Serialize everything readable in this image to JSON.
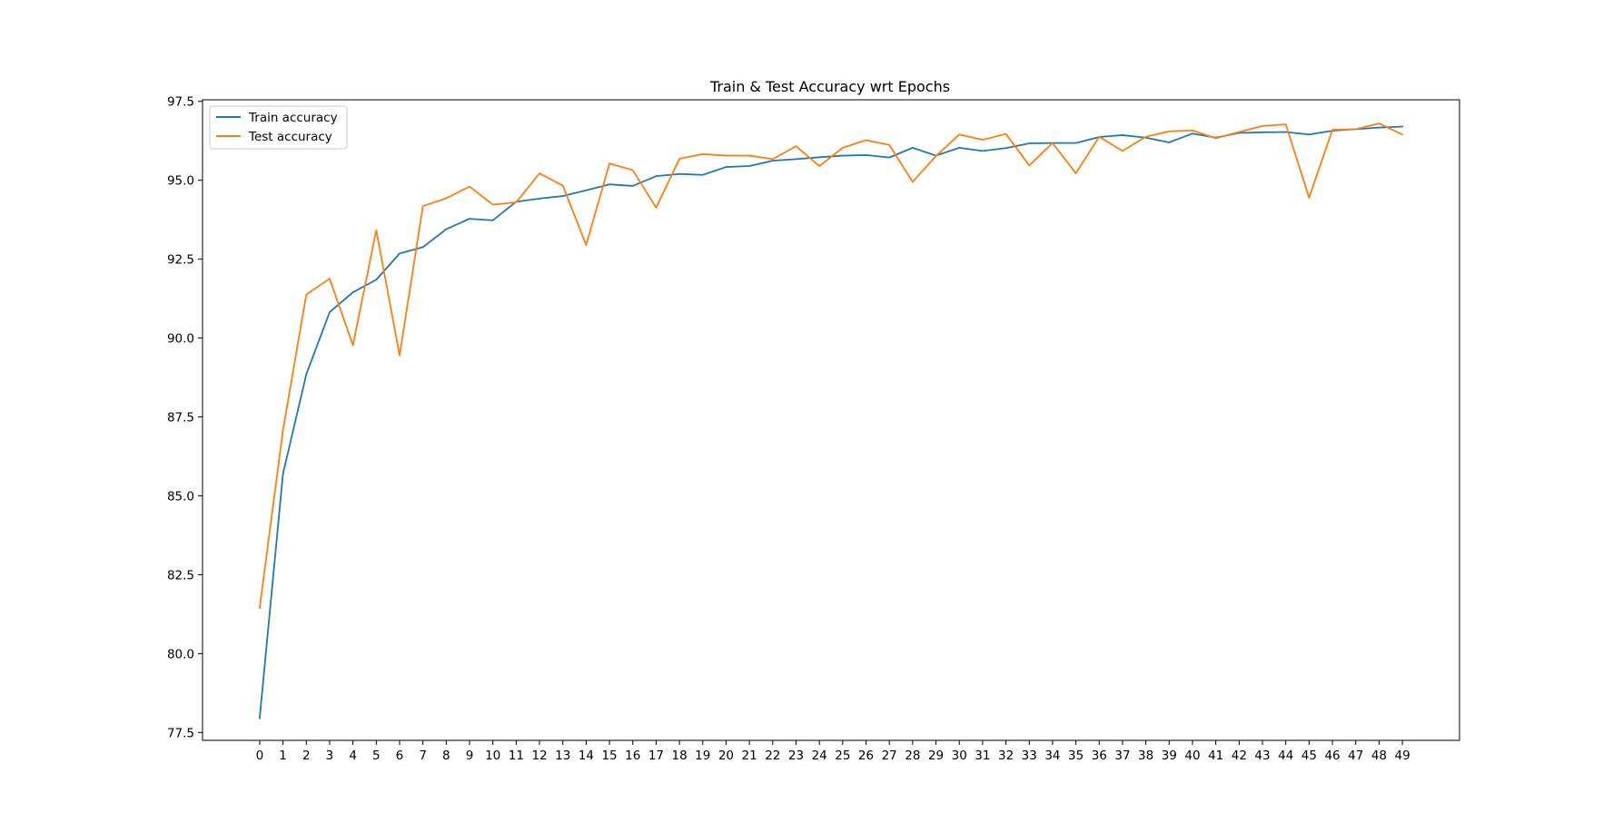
{
  "chart_data": {
    "type": "line",
    "title": "Train & Test Accuracy wrt Epochs",
    "xlabel": "",
    "ylabel": "",
    "x": [
      0,
      1,
      2,
      3,
      4,
      5,
      6,
      7,
      8,
      9,
      10,
      11,
      12,
      13,
      14,
      15,
      16,
      17,
      18,
      19,
      20,
      21,
      22,
      23,
      24,
      25,
      26,
      27,
      28,
      29,
      30,
      31,
      32,
      33,
      34,
      35,
      36,
      37,
      38,
      39,
      40,
      41,
      42,
      43,
      44,
      45,
      46,
      47,
      48,
      49
    ],
    "xticks": [
      "0",
      "1",
      "2",
      "3",
      "4",
      "5",
      "6",
      "7",
      "8",
      "9",
      "10",
      "11",
      "12",
      "13",
      "14",
      "15",
      "16",
      "17",
      "18",
      "19",
      "20",
      "21",
      "22",
      "23",
      "24",
      "25",
      "26",
      "27",
      "28",
      "29",
      "30",
      "31",
      "32",
      "33",
      "34",
      "35",
      "36",
      "37",
      "38",
      "39",
      "40",
      "41",
      "42",
      "43",
      "44",
      "45",
      "46",
      "47",
      "48",
      "49"
    ],
    "xlim": [
      -2.45,
      51.45
    ],
    "ylim": [
      77.25,
      97.55
    ],
    "yticks": [
      "77.5",
      "80.0",
      "82.5",
      "85.0",
      "87.5",
      "90.0",
      "92.5",
      "95.0",
      "97.5"
    ],
    "ytick_values": [
      77.5,
      80.0,
      82.5,
      85.0,
      87.5,
      90.0,
      92.5,
      95.0,
      97.5
    ],
    "grid": false,
    "legend_position": "upper-left",
    "series": [
      {
        "name": "Train accuracy",
        "color": "#1f77b4",
        "values": [
          77.95,
          85.7,
          88.85,
          90.82,
          91.45,
          91.85,
          92.68,
          92.88,
          93.45,
          93.78,
          93.73,
          94.32,
          94.42,
          94.5,
          94.68,
          94.87,
          94.82,
          95.13,
          95.2,
          95.17,
          95.42,
          95.45,
          95.62,
          95.67,
          95.73,
          95.78,
          95.8,
          95.72,
          96.03,
          95.78,
          96.03,
          95.93,
          96.02,
          96.17,
          96.18,
          96.18,
          96.37,
          96.43,
          96.35,
          96.2,
          96.48,
          96.35,
          96.5,
          96.52,
          96.53,
          96.45,
          96.57,
          96.62,
          96.67,
          96.7
        ]
      },
      {
        "name": "Test accuracy",
        "color": "#ff7f0e",
        "values": [
          81.45,
          87.08,
          91.38,
          91.88,
          89.77,
          93.42,
          89.45,
          94.18,
          94.43,
          94.8,
          94.23,
          94.3,
          95.22,
          94.83,
          92.95,
          95.53,
          95.32,
          94.13,
          95.68,
          95.83,
          95.78,
          95.78,
          95.67,
          96.08,
          95.45,
          96.03,
          96.27,
          96.12,
          94.95,
          95.77,
          96.45,
          96.28,
          96.47,
          95.47,
          96.18,
          95.22,
          96.38,
          95.93,
          96.38,
          96.55,
          96.58,
          96.33,
          96.53,
          96.72,
          96.77,
          94.45,
          96.6,
          96.62,
          96.8,
          96.45
        ]
      }
    ]
  }
}
